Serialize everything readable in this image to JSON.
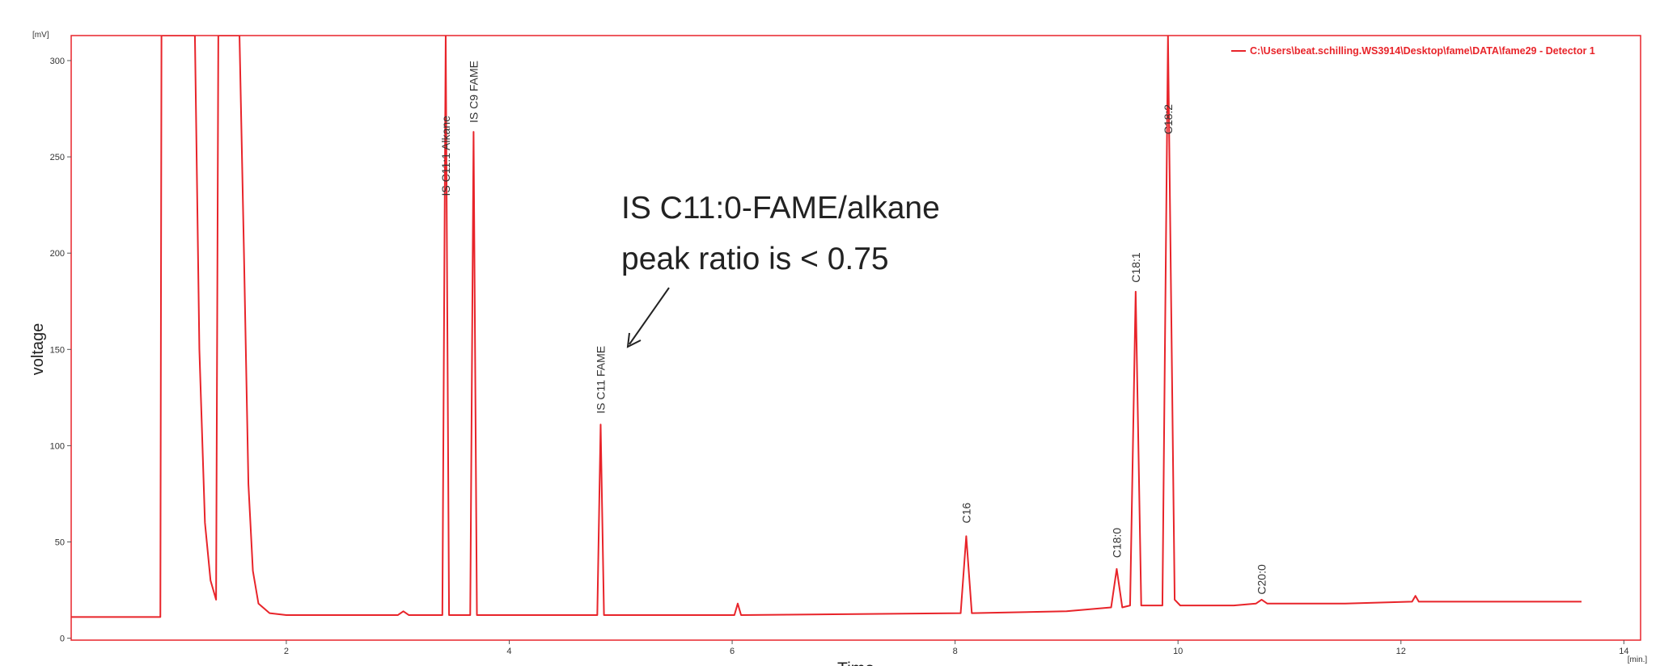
{
  "chart_data": {
    "type": "line",
    "x_label": "Time",
    "y_label": "voltage",
    "x_unit": "[min.]",
    "y_unit": "[mV]",
    "xlim": [
      0.07,
      14.15
    ],
    "ylim": [
      -1,
      313
    ],
    "xticks": [
      2,
      4,
      6,
      8,
      10,
      12,
      14
    ],
    "yticks": [
      0,
      50,
      100,
      150,
      200,
      250,
      300
    ],
    "legend": "top-right",
    "series": [
      {
        "name": "C:\\Users\\beat.schilling.WS3914\\Desktop\\fame\\DATA\\fame29 - Detector 1",
        "color": "#e8242a",
        "x": [
          0.07,
          0.87,
          0.88,
          1.18,
          1.22,
          1.27,
          1.32,
          1.37,
          1.39,
          1.58,
          1.62,
          1.66,
          1.7,
          1.75,
          1.85,
          2.0,
          3.0,
          3.05,
          3.1,
          3.4,
          3.43,
          3.46,
          3.65,
          3.68,
          3.71,
          4.79,
          4.82,
          4.85,
          6.02,
          6.05,
          6.08,
          8.05,
          8.1,
          8.15,
          9.0,
          9.4,
          9.45,
          9.5,
          9.57,
          9.62,
          9.67,
          9.86,
          9.91,
          9.97,
          10.02,
          10.5,
          10.7,
          10.75,
          10.8,
          11.5,
          12.1,
          12.13,
          12.16,
          13.0,
          13.62
        ],
        "values": [
          11,
          11,
          313,
          313,
          150,
          60,
          30,
          20,
          313,
          313,
          200,
          80,
          35,
          18,
          13,
          12,
          12,
          14,
          12,
          12,
          313,
          12,
          12,
          263,
          12,
          12,
          111,
          12,
          12,
          18,
          12,
          13,
          53,
          13,
          14,
          16,
          36,
          16,
          17,
          180,
          17,
          17,
          313,
          20,
          17,
          17,
          18,
          20,
          18,
          18,
          19,
          22,
          19,
          19,
          19
        ]
      }
    ],
    "annotations": [
      {
        "text": "IS C11:1 Alkane",
        "x": 3.43,
        "y": 228
      },
      {
        "text": "IS C9 FAME",
        "x": 3.68,
        "y": 266
      },
      {
        "text": "IS C11 FAME",
        "x": 4.82,
        "y": 115
      },
      {
        "text": "C16",
        "x": 8.1,
        "y": 58
      },
      {
        "text": "C18:0",
        "x": 9.45,
        "y": 40
      },
      {
        "text": "C18:1",
        "x": 9.62,
        "y": 183
      },
      {
        "text": "C18:2",
        "x": 9.91,
        "y": 260
      },
      {
        "text": "C20:0",
        "x": 10.75,
        "y": 21
      }
    ],
    "note": [
      "IS C11:0-FAME/alkane",
      "peak ratio is < 0.75"
    ]
  }
}
